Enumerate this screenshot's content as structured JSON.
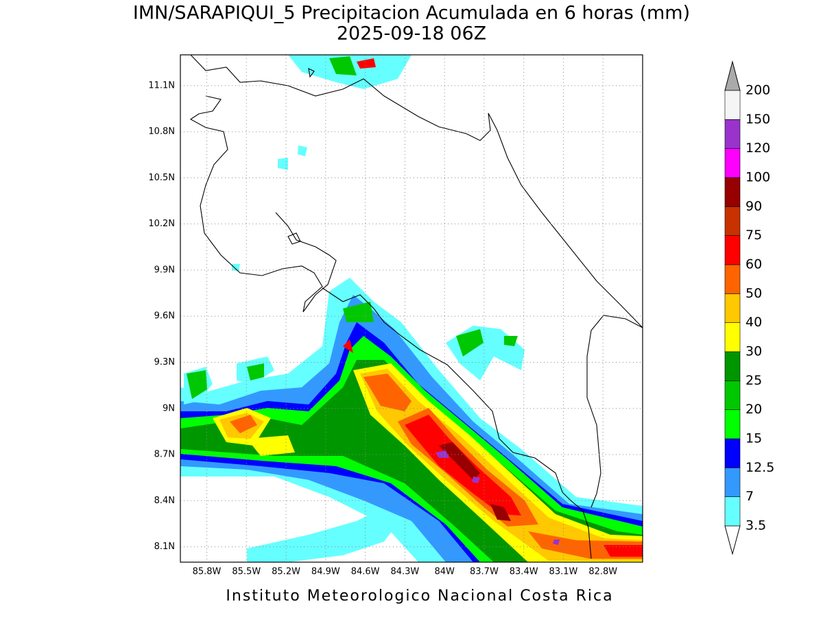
{
  "title": "IMN/SARAPIQUI_5 Precipitacion Acumulada en 6 horas (mm)",
  "subtitle": "2025-09-18 06Z",
  "map": {
    "xlim": [
      -86.0,
      -82.5
    ],
    "ylim": [
      8.0,
      11.3
    ],
    "grid": true,
    "xticks": [
      {
        "value": -85.8,
        "label": "85.8W"
      },
      {
        "value": -85.5,
        "label": "85.5W"
      },
      {
        "value": -85.2,
        "label": "85.2W"
      },
      {
        "value": -84.9,
        "label": "84.9W"
      },
      {
        "value": -84.6,
        "label": "84.6W"
      },
      {
        "value": -84.3,
        "label": "84.3W"
      },
      {
        "value": -84.0,
        "label": "84W"
      },
      {
        "value": -83.7,
        "label": "83.7W"
      },
      {
        "value": -83.4,
        "label": "83.4W"
      },
      {
        "value": -83.1,
        "label": "83.1W"
      },
      {
        "value": -82.8,
        "label": "82.8W"
      }
    ],
    "yticks": [
      {
        "value": 8.1,
        "label": "8.1N"
      },
      {
        "value": 8.4,
        "label": "8.4N"
      },
      {
        "value": 8.7,
        "label": "8.7N"
      },
      {
        "value": 9.0,
        "label": "9N"
      },
      {
        "value": 9.3,
        "label": "9.3N"
      },
      {
        "value": 9.6,
        "label": "9.6N"
      },
      {
        "value": 9.9,
        "label": "9.9N"
      },
      {
        "value": 10.2,
        "label": "10.2N"
      },
      {
        "value": 10.5,
        "label": "10.5N"
      },
      {
        "value": 10.8,
        "label": "10.8N"
      },
      {
        "value": 11.1,
        "label": "11.1N"
      }
    ]
  },
  "colorbar": {
    "levels": [
      3.5,
      7,
      12.5,
      15,
      20,
      25,
      30,
      40,
      50,
      60,
      75,
      90,
      100,
      120,
      150,
      200
    ],
    "colors": [
      "#66ffff",
      "#3399ff",
      "#0000ff",
      "#00ff00",
      "#00c800",
      "#009600",
      "#ffff00",
      "#ffc800",
      "#ff6400",
      "#ff0000",
      "#c83200",
      "#960000",
      "#ff00ff",
      "#9933cc",
      "#f5f5f5"
    ],
    "under_color": "#ffffff",
    "over_color": "#aaaaaa"
  },
  "footer": "Instituto Meteorologico Nacional Costa Rica"
}
